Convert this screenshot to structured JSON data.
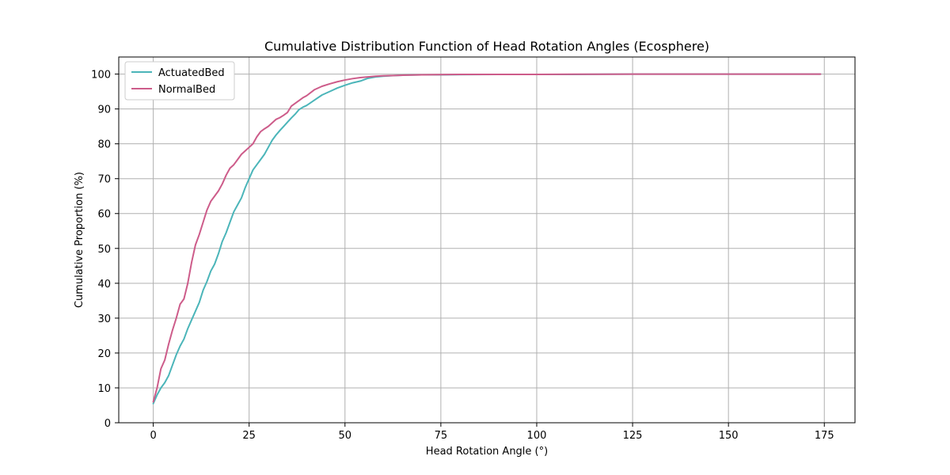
{
  "chart_data": {
    "type": "line",
    "title": "Cumulative Distribution Function of Head Rotation Angles (Ecosphere)",
    "xlabel": "Head Rotation Angle (°)",
    "ylabel": "Cumulative Proportion (%)",
    "xlim": [
      -9,
      183
    ],
    "ylim": [
      0,
      104.9
    ],
    "xticks": [
      0,
      25,
      50,
      75,
      100,
      125,
      150,
      175
    ],
    "yticks": [
      0,
      10,
      20,
      30,
      40,
      50,
      60,
      70,
      80,
      90,
      100
    ],
    "grid": true,
    "legend_position": "top-left",
    "series": [
      {
        "name": "ActuatedBed",
        "color": "#4bb5b9",
        "x": [
          0,
          1,
          2,
          3,
          4,
          5,
          6,
          7,
          8,
          9,
          10,
          11,
          12,
          13,
          14,
          15,
          16,
          17,
          18,
          19,
          20,
          21,
          22,
          23,
          24,
          25,
          26,
          27,
          28,
          29,
          30,
          31,
          32,
          33,
          34,
          35,
          36,
          37,
          38,
          39,
          40,
          42,
          44,
          46,
          48,
          50,
          52,
          54,
          56,
          58,
          60,
          63,
          66,
          70,
          75,
          80,
          90,
          100,
          110,
          125,
          140,
          150,
          160,
          174
        ],
        "y": [
          5.5,
          8,
          10,
          11.5,
          13.5,
          16.5,
          19.5,
          22,
          24,
          27,
          29.5,
          32,
          34.5,
          38,
          40.5,
          43.5,
          45.5,
          48.5,
          52,
          54.5,
          57.5,
          60.5,
          62.5,
          64.5,
          67.5,
          70,
          72.5,
          74,
          75.5,
          77,
          79,
          81,
          82.5,
          83.8,
          85,
          86.2,
          87.4,
          88.5,
          89.8,
          90.5,
          91,
          92.5,
          94,
          95,
          96,
          96.8,
          97.5,
          98,
          98.8,
          99.2,
          99.4,
          99.6,
          99.7,
          99.8,
          99.8,
          99.85,
          99.9,
          99.9,
          99.9,
          100,
          100,
          100,
          100,
          100
        ]
      },
      {
        "name": "NormalBed",
        "color": "#cd5c8a",
        "x": [
          0,
          1,
          2,
          3,
          4,
          5,
          6,
          7,
          8,
          9,
          10,
          11,
          12,
          13,
          14,
          15,
          16,
          17,
          18,
          19,
          20,
          21,
          22,
          23,
          24,
          25,
          26,
          27,
          28,
          29,
          30,
          31,
          32,
          33,
          34,
          35,
          36,
          37,
          38,
          39,
          40,
          42,
          44,
          46,
          48,
          50,
          52,
          54,
          56,
          58,
          60,
          63,
          66,
          70,
          75,
          80,
          90,
          100,
          110,
          125,
          140,
          150,
          160,
          174
        ],
        "y": [
          6,
          10,
          15.5,
          18,
          22.5,
          26.5,
          30,
          34,
          35.5,
          40,
          46,
          51,
          54,
          57.5,
          61,
          63.5,
          65,
          66.5,
          68.5,
          71,
          73,
          74,
          75.5,
          77,
          78,
          79,
          80,
          82,
          83.5,
          84.3,
          85,
          86,
          87,
          87.5,
          88.2,
          89,
          90.8,
          91.6,
          92.4,
          93.2,
          93.8,
          95.5,
          96.5,
          97.2,
          97.8,
          98.3,
          98.7,
          99,
          99.2,
          99.4,
          99.5,
          99.6,
          99.7,
          99.8,
          99.85,
          99.9,
          99.9,
          99.9,
          99.95,
          100,
          100,
          100,
          100,
          100
        ]
      }
    ]
  }
}
